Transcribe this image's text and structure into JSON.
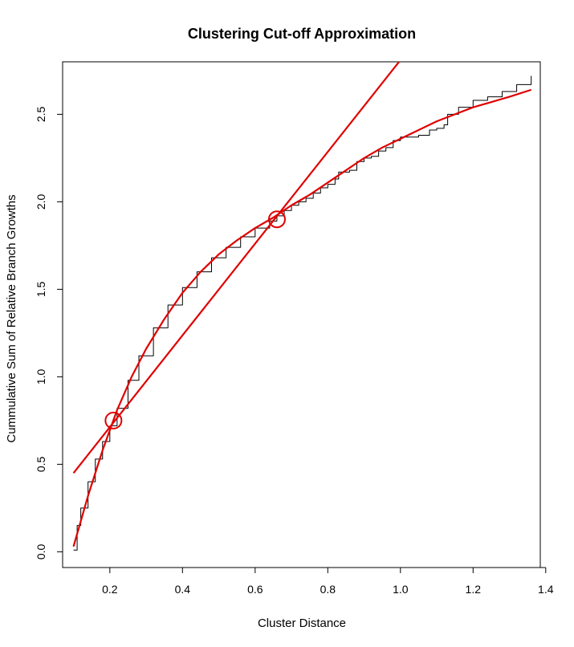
{
  "chart_data": {
    "type": "line",
    "title": "Clustering Cut-off Approximation",
    "xlabel": "Cluster Distance",
    "ylabel": "Cummulative Sum of Relative Branch Growths",
    "xlim": [
      0.07,
      1.385
    ],
    "ylim": [
      -0.09,
      2.8
    ],
    "xticks": [
      "0.2",
      "0.4",
      "0.6",
      "0.8",
      "1.0",
      "1.2",
      "1.4"
    ],
    "yticks": [
      "0.0",
      "0.5",
      "1.0",
      "1.5",
      "2.0",
      "2.5"
    ],
    "grid": false,
    "legend": "none",
    "series": [
      {
        "color": "#000000",
        "style": "step",
        "x": [
          0.1,
          0.11,
          0.12,
          0.14,
          0.16,
          0.18,
          0.2,
          0.22,
          0.25,
          0.28,
          0.32,
          0.36,
          0.4,
          0.44,
          0.48,
          0.52,
          0.56,
          0.6,
          0.64,
          0.66,
          0.68,
          0.7,
          0.72,
          0.74,
          0.76,
          0.78,
          0.8,
          0.82,
          0.83,
          0.86,
          0.88,
          0.9,
          0.92,
          0.94,
          0.96,
          0.98,
          1.0,
          1.02,
          1.05,
          1.08,
          1.1,
          1.12,
          1.13,
          1.16,
          1.2,
          1.24,
          1.28,
          1.32,
          1.36
        ],
        "values": [
          0.01,
          0.15,
          0.25,
          0.4,
          0.53,
          0.63,
          0.72,
          0.82,
          0.98,
          1.12,
          1.28,
          1.41,
          1.51,
          1.6,
          1.68,
          1.74,
          1.8,
          1.85,
          1.89,
          1.92,
          1.95,
          1.98,
          2.0,
          2.02,
          2.05,
          2.08,
          2.1,
          2.13,
          2.17,
          2.18,
          2.23,
          2.25,
          2.26,
          2.29,
          2.31,
          2.35,
          2.37,
          2.37,
          2.38,
          2.41,
          2.42,
          2.44,
          2.5,
          2.54,
          2.58,
          2.6,
          2.63,
          2.67,
          2.72
        ]
      },
      {
        "color": "#e00000",
        "style": "fit-curve",
        "x": [
          0.1,
          0.14,
          0.18,
          0.22,
          0.26,
          0.3,
          0.35,
          0.4,
          0.45,
          0.5,
          0.55,
          0.6,
          0.65,
          0.7,
          0.75,
          0.8,
          0.85,
          0.9,
          0.95,
          1.0,
          1.05,
          1.1,
          1.15,
          1.2,
          1.25,
          1.3,
          1.36
        ],
        "values": [
          0.03,
          0.32,
          0.58,
          0.81,
          1.0,
          1.16,
          1.33,
          1.48,
          1.6,
          1.7,
          1.78,
          1.85,
          1.91,
          1.98,
          2.04,
          2.11,
          2.18,
          2.25,
          2.31,
          2.36,
          2.41,
          2.46,
          2.5,
          2.54,
          2.57,
          2.6,
          2.64
        ]
      },
      {
        "color": "#e00000",
        "style": "tangent-line",
        "x": [
          0.1,
          1.0
        ],
        "values": [
          0.45,
          2.81
        ]
      }
    ],
    "points": [
      {
        "x": 0.21,
        "y": 0.75,
        "color": "#e00000"
      },
      {
        "x": 0.66,
        "y": 1.9,
        "color": "#e00000"
      }
    ]
  }
}
